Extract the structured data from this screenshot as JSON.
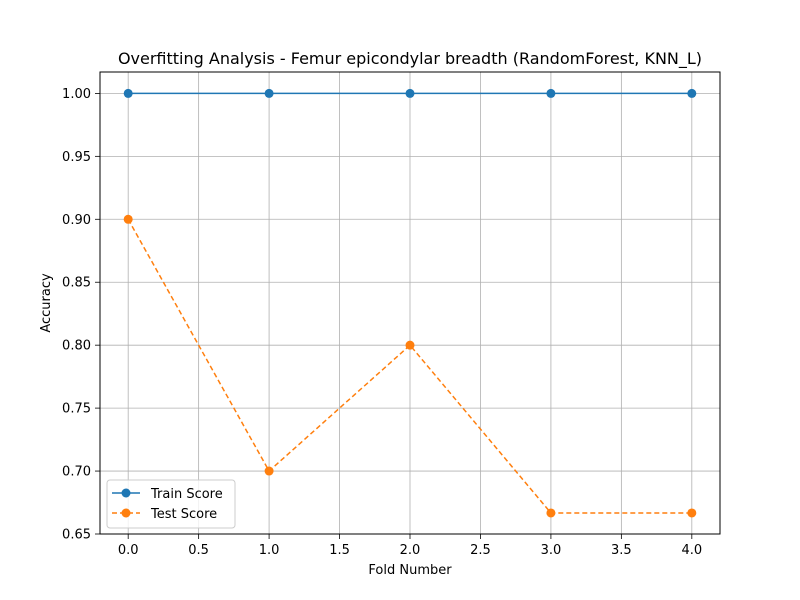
{
  "chart_data": {
    "type": "line",
    "title": "Overfitting Analysis - Femur epicondylar breadth (RandomForest, KNN_L)",
    "xlabel": "Fold Number",
    "ylabel": "Accuracy",
    "xlim": [
      -0.2,
      4.2
    ],
    "ylim": [
      0.65,
      1.017
    ],
    "x_ticks": [
      0.0,
      0.5,
      1.0,
      1.5,
      2.0,
      2.5,
      3.0,
      3.5,
      4.0
    ],
    "x_tick_labels": [
      "0.0",
      "0.5",
      "1.0",
      "1.5",
      "2.0",
      "2.5",
      "3.0",
      "3.5",
      "4.0"
    ],
    "y_ticks": [
      0.65,
      0.7,
      0.75,
      0.8,
      0.85,
      0.9,
      0.95,
      1.0
    ],
    "y_tick_labels": [
      "0.65",
      "0.70",
      "0.75",
      "0.80",
      "0.85",
      "0.90",
      "0.95",
      "1.00"
    ],
    "grid": true,
    "legend_position": "lower-left",
    "x": [
      0,
      1,
      2,
      3,
      4
    ],
    "series": [
      {
        "name": "Train Score",
        "values": [
          1.0,
          1.0,
          1.0,
          1.0,
          1.0
        ],
        "color": "#1f77b4",
        "line_style": "solid",
        "marker": "circle"
      },
      {
        "name": "Test Score",
        "values": [
          0.9,
          0.7,
          0.8,
          0.6667,
          0.6667
        ],
        "color": "#ff7f0e",
        "line_style": "dashed",
        "marker": "circle"
      }
    ]
  }
}
